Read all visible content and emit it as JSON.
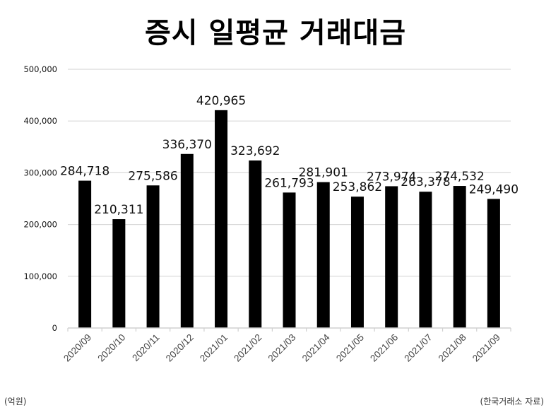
{
  "title": "증시 일평균 거래대금",
  "footer": {
    "unit": "(억원)",
    "source": "(한국거래소 자료)"
  },
  "colors": {
    "bar": "#000000",
    "grid": "#d9d9d9",
    "axis": "#d0d0d0",
    "text": "#111111"
  },
  "chart_data": {
    "type": "bar",
    "title": "증시 일평균 거래대금",
    "xlabel": "",
    "ylabel": "(억원)",
    "ylim": [
      0,
      500000
    ],
    "yticks": [
      0,
      100000,
      200000,
      300000,
      400000,
      500000
    ],
    "ytick_labels": [
      "0",
      "100,000",
      "200,000",
      "300,000",
      "400,000",
      "500,000"
    ],
    "grid": true,
    "legend": null,
    "categories": [
      "2020/09",
      "2020/10",
      "2020/11",
      "2020/12",
      "2021/01",
      "2021/02",
      "2021/03",
      "2021/04",
      "2021/05",
      "2021/06",
      "2021/07",
      "2021/08",
      "2021/09"
    ],
    "values": [
      284718,
      210311,
      275586,
      336370,
      420965,
      323692,
      261793,
      281901,
      253862,
      273974,
      263378,
      274532,
      249490
    ],
    "value_labels": [
      "284,718",
      "210,311",
      "275,586",
      "336,370",
      "420,965",
      "323,692",
      "261,793",
      "281,901",
      "253,862",
      "273,974",
      "263,378",
      "274,532",
      "249,490"
    ],
    "source_note": "(한국거래소 자료)"
  }
}
